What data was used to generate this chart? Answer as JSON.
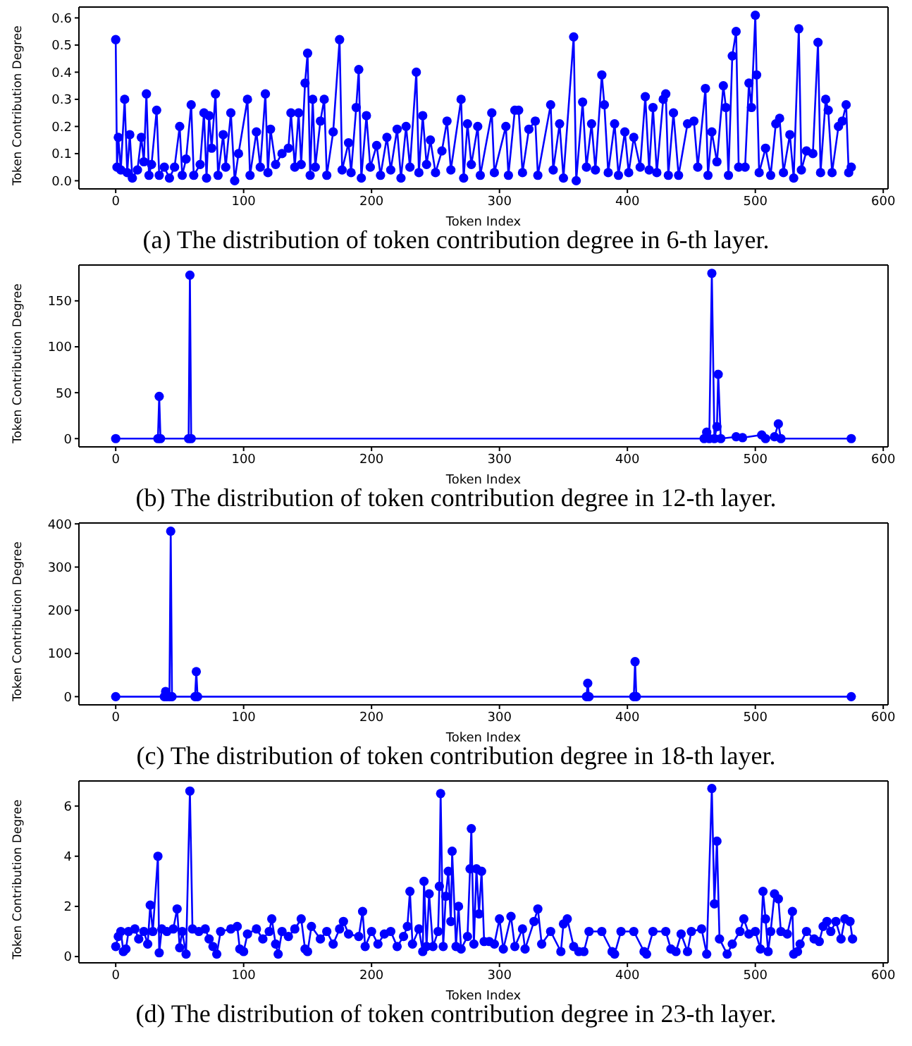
{
  "chart_data": [
    {
      "type": "line",
      "xlabel": "Token Index",
      "ylabel": "Token Contribution Degree",
      "annotations": [
        "(a) The distribution of token contribution degree in 6-th layer."
      ],
      "marker": "circle",
      "line_style": "solid",
      "xlim": [
        -28.75,
        603.75
      ],
      "xticks": [
        0,
        100,
        200,
        300,
        400,
        500,
        600
      ],
      "ylim": [
        -0.03,
        0.64
      ],
      "yticks": [
        {
          "value": 0,
          "label": "0.0"
        },
        0.1,
        0.2,
        0.3,
        0.4,
        0.5,
        0.6
      ],
      "series": [
        {
          "color": "#0000ff",
          "x": [
            0,
            1,
            2,
            4,
            7,
            9,
            11,
            13,
            17,
            20,
            22,
            24,
            26,
            28,
            32,
            34,
            38,
            42,
            46,
            50,
            52,
            55,
            59,
            61,
            66,
            69,
            71,
            73,
            75,
            78,
            80,
            84,
            86,
            90,
            93,
            96,
            103,
            105,
            110,
            113,
            117,
            119,
            121,
            125,
            130,
            135,
            137,
            140,
            143,
            145,
            148,
            150,
            152,
            154,
            156,
            160,
            163,
            165,
            170,
            175,
            177,
            182,
            184,
            188,
            190,
            192,
            196,
            199,
            204,
            207,
            212,
            215,
            220,
            223,
            227,
            230,
            235,
            237,
            240,
            243,
            246,
            250,
            255,
            259,
            262,
            270,
            272,
            275,
            278,
            283,
            285,
            294,
            296,
            305,
            307,
            312,
            315,
            318,
            323,
            328,
            330,
            340,
            342,
            347,
            350,
            358,
            360,
            365,
            368,
            372,
            375,
            380,
            382,
            385,
            390,
            393,
            398,
            401,
            405,
            410,
            414,
            417,
            420,
            423,
            428,
            430,
            432,
            436,
            440,
            447,
            452,
            455,
            461,
            463,
            466,
            470,
            475,
            477,
            479,
            482,
            485,
            487,
            492,
            495,
            497,
            500,
            501,
            503,
            508,
            512,
            516,
            519,
            522,
            527,
            530,
            534,
            536,
            540,
            545,
            549,
            551,
            555,
            557,
            560,
            565,
            568,
            571,
            573,
            575
          ],
          "values": [
            0.52,
            0.05,
            0.16,
            0.04,
            0.3,
            0.03,
            0.17,
            0.01,
            0.04,
            0.16,
            0.07,
            0.32,
            0.02,
            0.06,
            0.26,
            0.02,
            0.05,
            0.01,
            0.05,
            0.2,
            0.02,
            0.08,
            0.28,
            0.02,
            0.06,
            0.25,
            0.01,
            0.24,
            0.12,
            0.32,
            0.02,
            0.17,
            0.05,
            0.25,
            0.0,
            0.1,
            0.3,
            0.02,
            0.18,
            0.05,
            0.32,
            0.03,
            0.19,
            0.06,
            0.1,
            0.12,
            0.25,
            0.05,
            0.25,
            0.06,
            0.36,
            0.47,
            0.02,
            0.3,
            0.05,
            0.22,
            0.3,
            0.02,
            0.18,
            0.52,
            0.04,
            0.14,
            0.03,
            0.27,
            0.41,
            0.01,
            0.24,
            0.05,
            0.13,
            0.02,
            0.16,
            0.04,
            0.19,
            0.01,
            0.2,
            0.05,
            0.4,
            0.03,
            0.24,
            0.06,
            0.15,
            0.03,
            0.11,
            0.22,
            0.04,
            0.3,
            0.01,
            0.21,
            0.06,
            0.2,
            0.02,
            0.25,
            0.03,
            0.2,
            0.02,
            0.26,
            0.26,
            0.03,
            0.19,
            0.22,
            0.02,
            0.28,
            0.04,
            0.21,
            0.01,
            0.53,
            0.0,
            0.29,
            0.05,
            0.21,
            0.04,
            0.39,
            0.28,
            0.03,
            0.21,
            0.02,
            0.18,
            0.03,
            0.16,
            0.05,
            0.31,
            0.04,
            0.27,
            0.03,
            0.3,
            0.32,
            0.02,
            0.25,
            0.02,
            0.21,
            0.22,
            0.05,
            0.34,
            0.02,
            0.18,
            0.07,
            0.35,
            0.27,
            0.02,
            0.46,
            0.55,
            0.05,
            0.05,
            0.36,
            0.27,
            0.61,
            0.39,
            0.03,
            0.12,
            0.02,
            0.21,
            0.23,
            0.03,
            0.17,
            0.01,
            0.56,
            0.04,
            0.11,
            0.1,
            0.51,
            0.03,
            0.3,
            0.26,
            0.03,
            0.2,
            0.22,
            0.28,
            0.03,
            0.05
          ]
        }
      ]
    },
    {
      "type": "line",
      "xlabel": "Token Index",
      "ylabel": "Token Contribution Degree",
      "annotations": [
        "(b) The distribution of token contribution degree in 12-th layer."
      ],
      "marker": "circle",
      "line_style": "solid",
      "xlim": [
        -28.75,
        603.75
      ],
      "xticks": [
        0,
        100,
        200,
        300,
        400,
        500,
        600
      ],
      "ylim": [
        -9,
        189
      ],
      "yticks": [
        0,
        50,
        100,
        150
      ],
      "series": [
        {
          "color": "#0000ff",
          "x": [
            0,
            33,
            34,
            35,
            57,
            58,
            59,
            460,
            462,
            464,
            466,
            468,
            470,
            471,
            473,
            485,
            490,
            505,
            508,
            515,
            518,
            520,
            575
          ],
          "values": [
            0,
            0,
            46,
            0,
            0,
            178,
            0,
            0,
            7,
            0,
            180,
            0,
            13,
            70,
            0,
            2,
            1,
            4,
            0,
            2,
            16,
            0,
            0
          ]
        }
      ]
    },
    {
      "type": "line",
      "xlabel": "Token Index",
      "ylabel": "Token Contribution Degree",
      "annotations": [
        "(c) The distribution of token contribution degree in 18-th layer."
      ],
      "marker": "circle",
      "line_style": "solid",
      "xlim": [
        -28.75,
        603.75
      ],
      "xticks": [
        0,
        100,
        200,
        300,
        400,
        500,
        600
      ],
      "ylim": [
        -19,
        402
      ],
      "yticks": [
        0,
        100,
        200,
        300,
        400
      ],
      "series": [
        {
          "color": "#0000ff",
          "x": [
            0,
            38,
            39,
            40,
            42,
            43,
            44,
            62,
            63,
            64,
            368,
            369,
            370,
            405,
            406,
            407,
            575
          ],
          "values": [
            0,
            0,
            12,
            0,
            0,
            383,
            0,
            0,
            58,
            0,
            0,
            31,
            0,
            0,
            81,
            0,
            0
          ]
        }
      ]
    },
    {
      "type": "line",
      "xlabel": "Token Index",
      "ylabel": "Token Contribution Degree",
      "annotations": [
        "(d) The distribution of token contribution degree in 23-th layer."
      ],
      "marker": "circle",
      "line_style": "solid",
      "xlim": [
        -28.75,
        603.75
      ],
      "xticks": [
        0,
        100,
        200,
        300,
        400,
        500,
        600
      ],
      "ylim": [
        -0.25,
        7.0
      ],
      "yticks": [
        0,
        2,
        4,
        6
      ],
      "series": [
        {
          "color": "#0000ff",
          "x": [
            0,
            2,
            4,
            6,
            8,
            10,
            15,
            18,
            22,
            25,
            27,
            29,
            33,
            34,
            36,
            40,
            45,
            48,
            50,
            52,
            55,
            58,
            60,
            65,
            70,
            73,
            76,
            79,
            82,
            90,
            95,
            97,
            100,
            103,
            110,
            115,
            120,
            122,
            125,
            127,
            130,
            135,
            140,
            145,
            148,
            150,
            153,
            160,
            165,
            170,
            175,
            178,
            182,
            190,
            193,
            195,
            200,
            205,
            210,
            215,
            220,
            225,
            228,
            230,
            232,
            237,
            240,
            241,
            243,
            245,
            248,
            252,
            253,
            254,
            256,
            258,
            260,
            262,
            263,
            266,
            268,
            270,
            275,
            277,
            278,
            280,
            282,
            284,
            286,
            288,
            292,
            296,
            300,
            303,
            309,
            312,
            318,
            320,
            327,
            330,
            333,
            340,
            348,
            350,
            353,
            358,
            362,
            366,
            370,
            380,
            388,
            390,
            395,
            405,
            413,
            415,
            420,
            430,
            434,
            438,
            442,
            447,
            450,
            458,
            462,
            466,
            468,
            470,
            472,
            478,
            482,
            488,
            491,
            495,
            500,
            504,
            506,
            508,
            510,
            512,
            515,
            518,
            520,
            525,
            529,
            530,
            533,
            535,
            540,
            546,
            550,
            553,
            556,
            559,
            563,
            567,
            570,
            574,
            576
          ],
          "values": [
            0.4,
            0.8,
            1.0,
            0.2,
            0.3,
            1.0,
            1.1,
            0.7,
            1.0,
            0.5,
            2.05,
            1.0,
            4.0,
            0.15,
            1.1,
            1.0,
            1.1,
            1.9,
            0.35,
            1.0,
            0.1,
            6.6,
            1.1,
            1.0,
            1.1,
            0.7,
            0.4,
            0.1,
            1.0,
            1.1,
            1.2,
            0.3,
            0.2,
            0.9,
            1.1,
            0.7,
            1.0,
            1.5,
            0.5,
            0.1,
            1.0,
            0.8,
            1.1,
            1.5,
            0.3,
            0.2,
            1.2,
            0.7,
            1.0,
            0.5,
            1.1,
            1.4,
            0.9,
            0.8,
            1.8,
            0.4,
            1.0,
            0.5,
            0.9,
            1.0,
            0.4,
            0.8,
            1.2,
            2.6,
            0.5,
            1.1,
            0.2,
            3.0,
            0.4,
            2.5,
            0.4,
            1.0,
            2.8,
            6.5,
            0.4,
            2.4,
            3.4,
            1.4,
            4.2,
            0.4,
            2.0,
            0.3,
            0.8,
            3.5,
            5.1,
            0.5,
            3.5,
            1.7,
            3.4,
            0.6,
            0.6,
            0.5,
            1.5,
            0.3,
            1.6,
            0.4,
            1.1,
            0.3,
            1.4,
            1.9,
            0.5,
            1.0,
            0.2,
            1.3,
            1.5,
            0.4,
            0.2,
            0.2,
            1.0,
            1.0,
            0.2,
            0.1,
            1.0,
            1.0,
            0.2,
            0.1,
            1.0,
            1.0,
            0.3,
            0.2,
            0.9,
            0.2,
            1.0,
            1.1,
            0.1,
            6.7,
            2.1,
            4.6,
            0.7,
            0.1,
            0.5,
            1.0,
            1.5,
            0.9,
            1.0,
            0.3,
            2.6,
            1.5,
            0.2,
            1.0,
            2.5,
            2.3,
            1.0,
            0.9,
            1.8,
            0.1,
            0.2,
            0.5,
            1.0,
            0.7,
            0.6,
            1.2,
            1.4,
            1.0,
            1.4,
            0.7,
            1.5,
            1.4,
            0.7
          ]
        }
      ]
    }
  ]
}
